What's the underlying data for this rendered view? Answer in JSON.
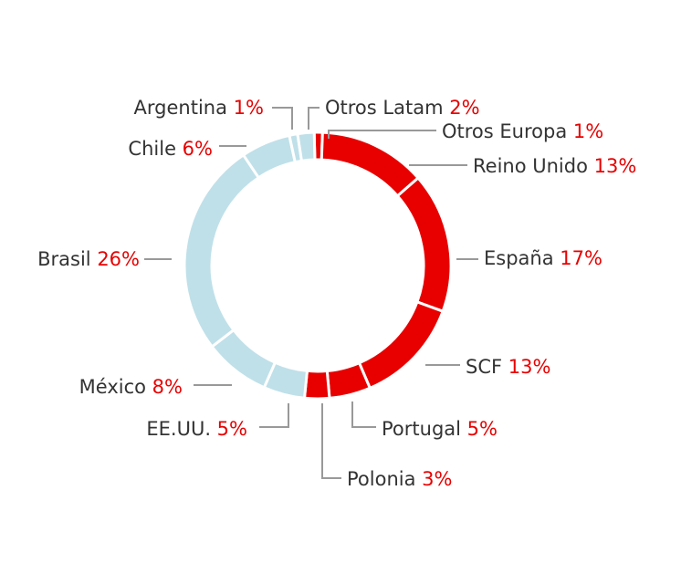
{
  "chart_data": {
    "type": "pie",
    "donut": true,
    "categories": [
      "Otros Europa",
      "Reino Unido",
      "España",
      "SCF",
      "Portugal",
      "Polonia",
      "EE.UU.",
      "México",
      "Brasil",
      "Chile",
      "Argentina",
      "Otros Latam"
    ],
    "values": [
      1,
      13,
      17,
      13,
      5,
      3,
      5,
      8,
      26,
      6,
      1,
      2
    ],
    "value_labels": [
      "1%",
      "13%",
      "17%",
      "13%",
      "5%",
      "3%",
      "5%",
      "8%",
      "26%",
      "6%",
      "1%",
      "2%"
    ],
    "colors": [
      "#e80000",
      "#e80000",
      "#e80000",
      "#e80000",
      "#e80000",
      "#e80000",
      "#bfe0e9",
      "#bfe0e9",
      "#bfe0e9",
      "#bfe0e9",
      "#bfe0e9",
      "#bfe0e9"
    ],
    "label_color": "#333333",
    "value_color": "#e80000",
    "leader_color": "#999999"
  }
}
